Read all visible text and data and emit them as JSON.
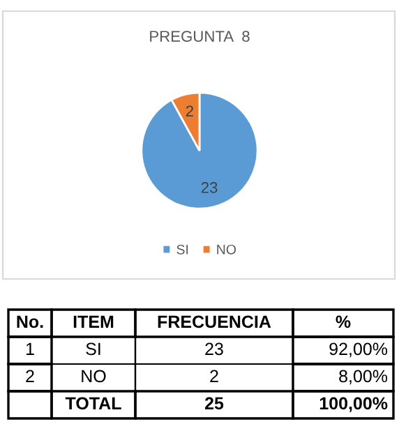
{
  "chart_data": {
    "type": "pie",
    "title": "PREGUNTA  8",
    "categories": [
      "SI",
      "NO"
    ],
    "values": [
      23,
      2
    ],
    "colors": [
      "#5b9bd5",
      "#ed7d31"
    ],
    "data_labels": true,
    "legend": "bottom",
    "annotations": [
      "No.",
      "ITEM",
      "FRECUENCIA",
      "%",
      "1",
      "SI",
      "23",
      "92,00%",
      "2",
      "NO",
      "2",
      "8,00%",
      "TOTAL",
      "25",
      "100,00%"
    ]
  }
}
